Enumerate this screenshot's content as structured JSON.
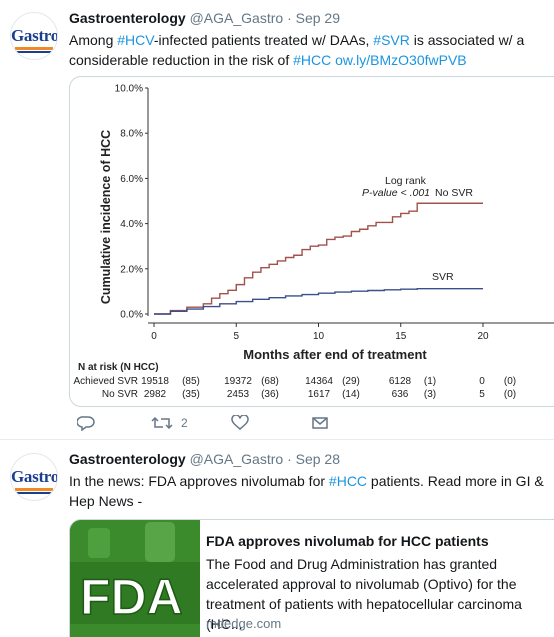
{
  "tweets": [
    {
      "avatar_text": "Gastro",
      "name": "Gastroenterology",
      "handle": "@AGA_Gastro",
      "separator": "·",
      "date": "Sep 29",
      "text_parts": [
        {
          "text": "Among ",
          "link": false
        },
        {
          "text": "#HCV",
          "link": true
        },
        {
          "text": "-infected patients treated w/ DAAs, ",
          "link": false
        },
        {
          "text": "#SVR",
          "link": true
        },
        {
          "text": " is associated w/ a considerable reduction in the risk of ",
          "link": false
        },
        {
          "text": "#HCC",
          "link": true
        },
        {
          "text": " ",
          "link": false
        },
        {
          "text": "ow.ly/BMzO30fwPVB",
          "link": true
        }
      ],
      "actions": {
        "reply_icon": "reply-icon",
        "retweet_icon": "retweet-icon",
        "retweet_count": "2",
        "like_icon": "heart-icon",
        "dm_icon": "envelope-icon"
      }
    },
    {
      "avatar_text": "Gastro",
      "name": "Gastroenterology",
      "handle": "@AGA_Gastro",
      "separator": "·",
      "date": "Sep 28",
      "text_parts": [
        {
          "text": "In the news: FDA approves nivolumab for ",
          "link": false
        },
        {
          "text": "#HCC",
          "link": true
        },
        {
          "text": " patients. Read more in GI & Hep News -",
          "link": false
        }
      ],
      "card": {
        "thumb_text": "FDA",
        "title": "FDA approves nivolumab for HCC patients",
        "description": "The Food and Drug Administration has granted accelerated approval to nivolumab (Optivo) for the treatment of patients with hepatocellular carcinoma (HC...",
        "domain": "mdedge.com"
      }
    }
  ],
  "colors": {
    "link": "#1b95e0",
    "muted": "#657786",
    "no_svr_line": "#a0524b",
    "svr_line": "#3b4f8a"
  },
  "chart_data": {
    "type": "line",
    "title": "",
    "ylabel": "Cumulative incidence of HCC",
    "xlabel": "Months after end of treatment",
    "xlim": [
      0,
      20
    ],
    "ylim": [
      0,
      10
    ],
    "x_ticks": [
      "0",
      "5",
      "10",
      "15",
      "20"
    ],
    "y_ticks": [
      "0.0%",
      "2.0%",
      "4.0%",
      "6.0%",
      "8.0%",
      "10.0%"
    ],
    "y_tick_values": [
      0,
      2,
      4,
      6,
      8,
      10
    ],
    "x_tick_values": [
      0,
      5,
      10,
      15,
      20
    ],
    "annotation_line1": "Log rank",
    "annotation_line2": "P-value < .001",
    "series": [
      {
        "name": "No SVR",
        "x": [
          0,
          1,
          2,
          3,
          3.5,
          4,
          4.5,
          5,
          5.5,
          6,
          6.5,
          7,
          7.5,
          8,
          8.5,
          9,
          9.5,
          10,
          10.5,
          11,
          11.5,
          12,
          12.5,
          13,
          13.5,
          14,
          14.5,
          15,
          15.5,
          16,
          17,
          18,
          19,
          20
        ],
        "y": [
          0,
          0.15,
          0.3,
          0.45,
          0.7,
          0.9,
          1.05,
          1.3,
          1.6,
          1.85,
          2.05,
          2.2,
          2.35,
          2.5,
          2.6,
          2.85,
          3.0,
          3.05,
          3.3,
          3.4,
          3.45,
          3.65,
          3.75,
          3.9,
          4.05,
          4.05,
          4.3,
          4.45,
          4.55,
          4.9,
          4.9,
          4.9,
          4.9,
          4.9
        ]
      },
      {
        "name": "SVR",
        "x": [
          0,
          1,
          2,
          3,
          4,
          5,
          6,
          7,
          8,
          9,
          10,
          11,
          12,
          13,
          14,
          15,
          16,
          17,
          18,
          19,
          20
        ],
        "y": [
          0,
          0.12,
          0.22,
          0.33,
          0.45,
          0.55,
          0.65,
          0.72,
          0.8,
          0.86,
          0.92,
          0.97,
          1.01,
          1.04,
          1.07,
          1.1,
          1.12,
          1.12,
          1.12,
          1.12,
          1.12
        ]
      }
    ],
    "risk_table": {
      "header": "N at risk (N HCC)",
      "rows": [
        {
          "label": "Achieved SVR",
          "cells": [
            "19518",
            "(85)",
            "19372",
            "(68)",
            "14364",
            "(29)",
            "6128",
            "(1)",
            "0",
            "(0)"
          ]
        },
        {
          "label": "No SVR",
          "cells": [
            "2982",
            "(35)",
            "2453",
            "(36)",
            "1617",
            "(14)",
            "636",
            "(3)",
            "5",
            "(0)"
          ]
        }
      ]
    }
  }
}
